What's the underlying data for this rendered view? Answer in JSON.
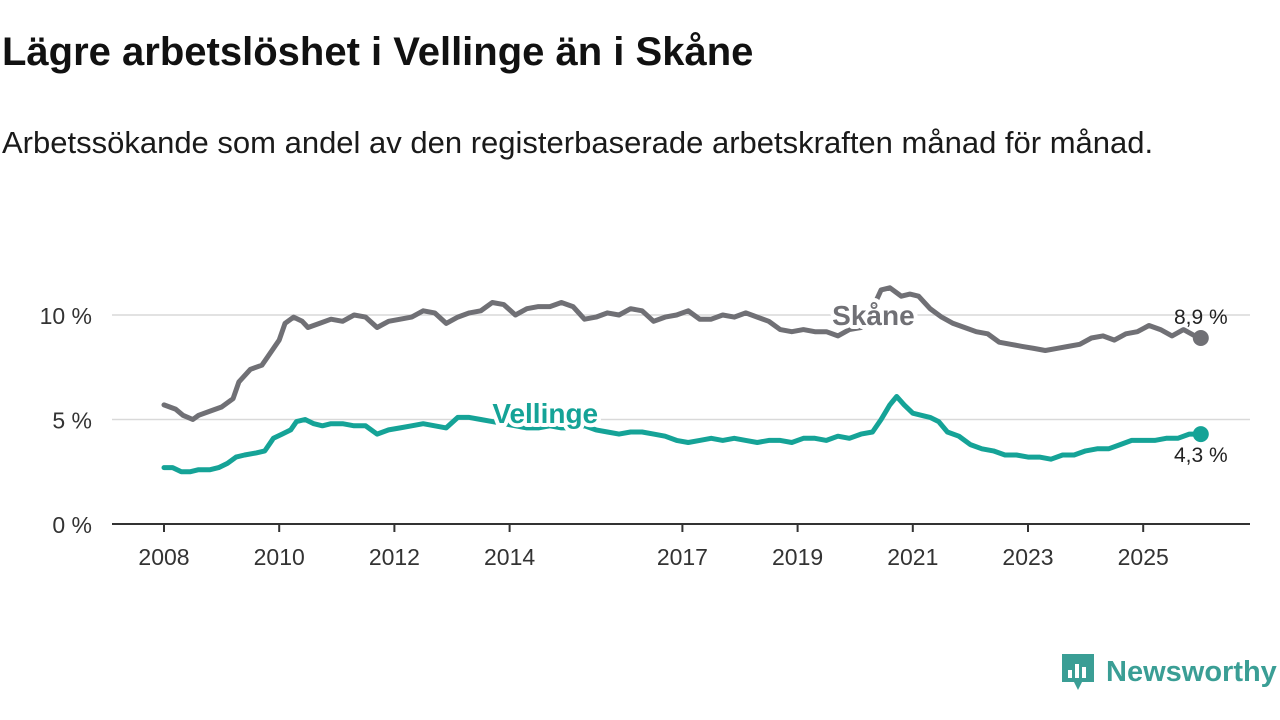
{
  "header": {
    "title": "Lägre arbetslöshet i Vellinge än i Skåne",
    "subtitle": "Arbetssökande som andel av den registerbaserade arbetskraften månad för månad."
  },
  "brand": {
    "name": "Newsworthy",
    "icon": "newsworthy-logo-icon",
    "color": "#3a9e95"
  },
  "chart_data": {
    "type": "line",
    "title": "Lägre arbetslöshet i Vellinge än i Skåne",
    "subtitle": "Arbetssökande som andel av den registerbaserade arbetskraften månad för månad.",
    "xlabel": "",
    "ylabel": "",
    "xlim": [
      2008,
      2026.3
    ],
    "ylim": [
      0,
      12
    ],
    "x_ticks": [
      2008,
      2010,
      2012,
      2014,
      2017,
      2019,
      2021,
      2023,
      2025
    ],
    "x_tick_labels": [
      "2008",
      "2010",
      "2012",
      "2014",
      "2017",
      "2019",
      "2021",
      "2023",
      "2025"
    ],
    "y_ticks": [
      0,
      5,
      10
    ],
    "y_tick_labels": [
      "0 %",
      "5 %",
      "10 %"
    ],
    "grid": true,
    "series": [
      {
        "name": "Skåne",
        "color": "#707075",
        "end_label": "8,9 %",
        "points": [
          [
            2008.0,
            5.7
          ],
          [
            2008.2,
            5.5
          ],
          [
            2008.33,
            5.2
          ],
          [
            2008.5,
            5.0
          ],
          [
            2008.6,
            5.2
          ],
          [
            2008.8,
            5.4
          ],
          [
            2009.0,
            5.6
          ],
          [
            2009.2,
            6.0
          ],
          [
            2009.3,
            6.8
          ],
          [
            2009.5,
            7.4
          ],
          [
            2009.7,
            7.6
          ],
          [
            2009.8,
            8.0
          ],
          [
            2010.0,
            8.8
          ],
          [
            2010.1,
            9.6
          ],
          [
            2010.25,
            9.9
          ],
          [
            2010.4,
            9.7
          ],
          [
            2010.5,
            9.4
          ],
          [
            2010.7,
            9.6
          ],
          [
            2010.9,
            9.8
          ],
          [
            2011.1,
            9.7
          ],
          [
            2011.3,
            10.0
          ],
          [
            2011.5,
            9.9
          ],
          [
            2011.7,
            9.4
          ],
          [
            2011.9,
            9.7
          ],
          [
            2012.1,
            9.8
          ],
          [
            2012.3,
            9.9
          ],
          [
            2012.5,
            10.2
          ],
          [
            2012.7,
            10.1
          ],
          [
            2012.9,
            9.6
          ],
          [
            2013.1,
            9.9
          ],
          [
            2013.3,
            10.1
          ],
          [
            2013.5,
            10.2
          ],
          [
            2013.7,
            10.6
          ],
          [
            2013.9,
            10.5
          ],
          [
            2014.1,
            10.0
          ],
          [
            2014.3,
            10.3
          ],
          [
            2014.5,
            10.4
          ],
          [
            2014.7,
            10.4
          ],
          [
            2014.9,
            10.6
          ],
          [
            2015.1,
            10.4
          ],
          [
            2015.3,
            9.8
          ],
          [
            2015.5,
            9.9
          ],
          [
            2015.7,
            10.1
          ],
          [
            2015.9,
            10.0
          ],
          [
            2016.1,
            10.3
          ],
          [
            2016.3,
            10.2
          ],
          [
            2016.5,
            9.7
          ],
          [
            2016.7,
            9.9
          ],
          [
            2016.9,
            10.0
          ],
          [
            2017.1,
            10.2
          ],
          [
            2017.3,
            9.8
          ],
          [
            2017.5,
            9.8
          ],
          [
            2017.7,
            10.0
          ],
          [
            2017.9,
            9.9
          ],
          [
            2018.1,
            10.1
          ],
          [
            2018.3,
            9.9
          ],
          [
            2018.5,
            9.7
          ],
          [
            2018.7,
            9.3
          ],
          [
            2018.9,
            9.2
          ],
          [
            2019.1,
            9.3
          ],
          [
            2019.3,
            9.2
          ],
          [
            2019.5,
            9.2
          ],
          [
            2019.7,
            9.0
          ],
          [
            2019.9,
            9.3
          ],
          [
            2020.1,
            9.4
          ],
          [
            2020.3,
            10.3
          ],
          [
            2020.45,
            11.2
          ],
          [
            2020.6,
            11.3
          ],
          [
            2020.8,
            10.9
          ],
          [
            2020.95,
            11.0
          ],
          [
            2021.1,
            10.9
          ],
          [
            2021.3,
            10.3
          ],
          [
            2021.5,
            9.9
          ],
          [
            2021.7,
            9.6
          ],
          [
            2021.9,
            9.4
          ],
          [
            2022.1,
            9.2
          ],
          [
            2022.3,
            9.1
          ],
          [
            2022.5,
            8.7
          ],
          [
            2022.7,
            8.6
          ],
          [
            2022.9,
            8.5
          ],
          [
            2023.1,
            8.4
          ],
          [
            2023.3,
            8.3
          ],
          [
            2023.5,
            8.4
          ],
          [
            2023.7,
            8.5
          ],
          [
            2023.9,
            8.6
          ],
          [
            2024.1,
            8.9
          ],
          [
            2024.3,
            9.0
          ],
          [
            2024.5,
            8.8
          ],
          [
            2024.7,
            9.1
          ],
          [
            2024.9,
            9.2
          ],
          [
            2025.1,
            9.5
          ],
          [
            2025.3,
            9.3
          ],
          [
            2025.5,
            9.0
          ],
          [
            2025.7,
            9.3
          ],
          [
            2025.9,
            9.0
          ],
          [
            2026.0,
            8.9
          ]
        ]
      },
      {
        "name": "Vellinge",
        "color": "#15a397",
        "end_label": "4,3 %",
        "points": [
          [
            2008.0,
            2.7
          ],
          [
            2008.15,
            2.7
          ],
          [
            2008.3,
            2.5
          ],
          [
            2008.45,
            2.5
          ],
          [
            2008.6,
            2.6
          ],
          [
            2008.8,
            2.6
          ],
          [
            2008.95,
            2.7
          ],
          [
            2009.1,
            2.9
          ],
          [
            2009.25,
            3.2
          ],
          [
            2009.4,
            3.3
          ],
          [
            2009.6,
            3.4
          ],
          [
            2009.75,
            3.5
          ],
          [
            2009.9,
            4.1
          ],
          [
            2010.05,
            4.3
          ],
          [
            2010.2,
            4.5
          ],
          [
            2010.3,
            4.9
          ],
          [
            2010.45,
            5.0
          ],
          [
            2010.6,
            4.8
          ],
          [
            2010.75,
            4.7
          ],
          [
            2010.9,
            4.8
          ],
          [
            2011.1,
            4.8
          ],
          [
            2011.3,
            4.7
          ],
          [
            2011.5,
            4.7
          ],
          [
            2011.7,
            4.3
          ],
          [
            2011.9,
            4.5
          ],
          [
            2012.1,
            4.6
          ],
          [
            2012.3,
            4.7
          ],
          [
            2012.5,
            4.8
          ],
          [
            2012.7,
            4.7
          ],
          [
            2012.9,
            4.6
          ],
          [
            2013.1,
            5.1
          ],
          [
            2013.3,
            5.1
          ],
          [
            2013.5,
            5.0
          ],
          [
            2013.7,
            4.9
          ],
          [
            2013.9,
            4.8
          ],
          [
            2014.1,
            4.7
          ],
          [
            2014.3,
            4.6
          ],
          [
            2014.5,
            4.6
          ],
          [
            2014.7,
            4.7
          ],
          [
            2014.9,
            4.6
          ],
          [
            2015.1,
            4.6
          ],
          [
            2015.3,
            4.7
          ],
          [
            2015.5,
            4.5
          ],
          [
            2015.7,
            4.4
          ],
          [
            2015.9,
            4.3
          ],
          [
            2016.1,
            4.4
          ],
          [
            2016.3,
            4.4
          ],
          [
            2016.5,
            4.3
          ],
          [
            2016.7,
            4.2
          ],
          [
            2016.9,
            4.0
          ],
          [
            2017.1,
            3.9
          ],
          [
            2017.3,
            4.0
          ],
          [
            2017.5,
            4.1
          ],
          [
            2017.7,
            4.0
          ],
          [
            2017.9,
            4.1
          ],
          [
            2018.1,
            4.0
          ],
          [
            2018.3,
            3.9
          ],
          [
            2018.5,
            4.0
          ],
          [
            2018.7,
            4.0
          ],
          [
            2018.9,
            3.9
          ],
          [
            2019.1,
            4.1
          ],
          [
            2019.3,
            4.1
          ],
          [
            2019.5,
            4.0
          ],
          [
            2019.7,
            4.2
          ],
          [
            2019.9,
            4.1
          ],
          [
            2020.1,
            4.3
          ],
          [
            2020.3,
            4.4
          ],
          [
            2020.45,
            5.0
          ],
          [
            2020.6,
            5.7
          ],
          [
            2020.72,
            6.1
          ],
          [
            2020.85,
            5.7
          ],
          [
            2021.0,
            5.3
          ],
          [
            2021.15,
            5.2
          ],
          [
            2021.3,
            5.1
          ],
          [
            2021.45,
            4.9
          ],
          [
            2021.6,
            4.4
          ],
          [
            2021.8,
            4.2
          ],
          [
            2022.0,
            3.8
          ],
          [
            2022.2,
            3.6
          ],
          [
            2022.4,
            3.5
          ],
          [
            2022.6,
            3.3
          ],
          [
            2022.8,
            3.3
          ],
          [
            2023.0,
            3.2
          ],
          [
            2023.2,
            3.2
          ],
          [
            2023.4,
            3.1
          ],
          [
            2023.6,
            3.3
          ],
          [
            2023.8,
            3.3
          ],
          [
            2024.0,
            3.5
          ],
          [
            2024.2,
            3.6
          ],
          [
            2024.4,
            3.6
          ],
          [
            2024.6,
            3.8
          ],
          [
            2024.8,
            4.0
          ],
          [
            2025.0,
            4.0
          ],
          [
            2025.2,
            4.0
          ],
          [
            2025.4,
            4.1
          ],
          [
            2025.6,
            4.1
          ],
          [
            2025.8,
            4.3
          ],
          [
            2026.0,
            4.3
          ]
        ]
      }
    ],
    "annotations": [
      {
        "text": "Skåne",
        "series": "Skåne",
        "x": 2019.6,
        "y": 10.0
      },
      {
        "text": "Vellinge",
        "series": "Vellinge",
        "x": 2013.7,
        "y": 5.3
      }
    ]
  }
}
